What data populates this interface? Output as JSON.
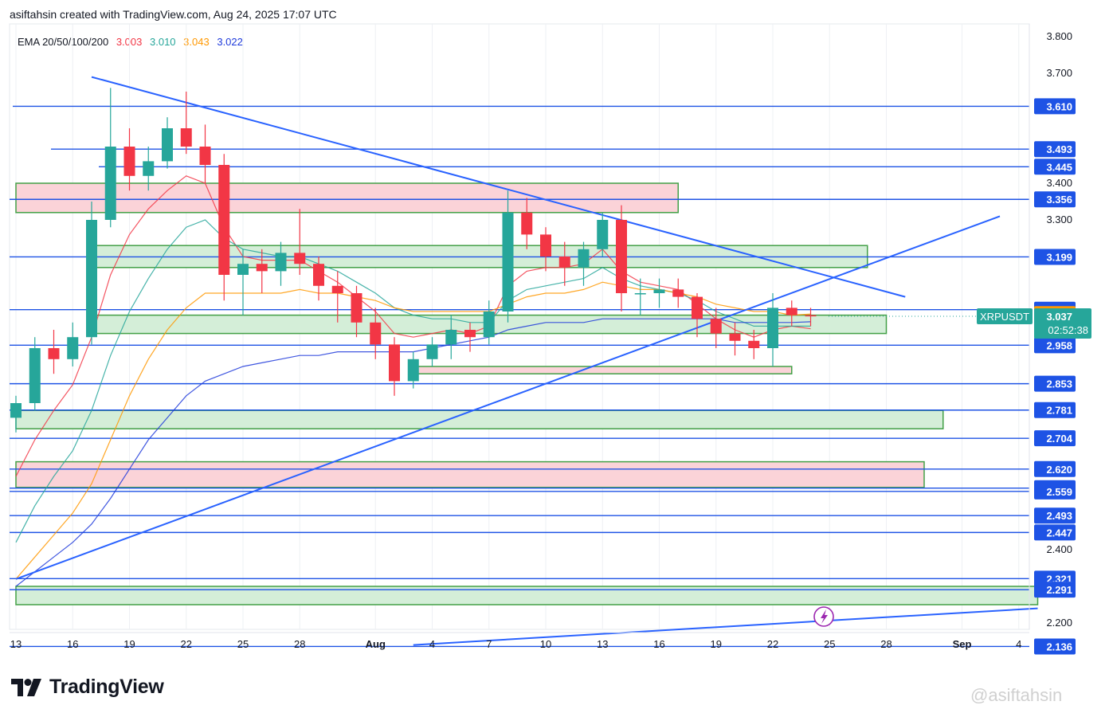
{
  "header": {
    "text": "asiftahsin created with TradingView.com, Aug 24, 2025 17:07 UTC"
  },
  "ema": {
    "label": "EMA 20/50/100/200",
    "values": [
      {
        "text": "3.003",
        "color": "#f23645"
      },
      {
        "text": "3.010",
        "color": "#26a69a"
      },
      {
        "text": "3.043",
        "color": "#ff9800"
      },
      {
        "text": "3.022",
        "color": "#1e3adb"
      }
    ]
  },
  "chart_data": {
    "type": "candlestick",
    "symbol": "XRPUSDT",
    "last_price": "3.037",
    "countdown": "02:52:38",
    "y_axis_labels": [
      "3.800",
      "3.700",
      "3.400",
      "3.300",
      "2.400",
      "2.200"
    ],
    "price_levels": [
      "3.610",
      "3.493",
      "3.445",
      "3.356",
      "3.199",
      "3.055",
      "2.958",
      "2.853",
      "2.781",
      "2.704",
      "2.620",
      "2.568",
      "2.559",
      "2.493",
      "2.447",
      "2.321",
      "2.291",
      "2.136"
    ],
    "ema_tags": [
      {
        "value": "3.043",
        "color": "#ff9800"
      },
      {
        "value": "3.022",
        "color": "#1e3adb"
      },
      {
        "value": "3.010",
        "color": "#26c6da"
      },
      {
        "value": "3.003",
        "color": "#f23645"
      }
    ],
    "x_axis_labels": [
      "13",
      "16",
      "19",
      "22",
      "25",
      "28",
      "Aug",
      "4",
      "7",
      "10",
      "13",
      "16",
      "19",
      "22",
      "25",
      "28",
      "Sep",
      "4"
    ],
    "x_label_dates": [
      "2025-07-13",
      "2025-07-16",
      "2025-07-19",
      "2025-07-22",
      "2025-07-25",
      "2025-07-28",
      "2025-08-01",
      "2025-08-04",
      "2025-08-07",
      "2025-08-10",
      "2025-08-13",
      "2025-08-16",
      "2025-08-19",
      "2025-08-22",
      "2025-08-25",
      "2025-08-28",
      "2025-09-01",
      "2025-09-04"
    ],
    "zones": [
      {
        "type": "resistance",
        "from": 3.32,
        "to": 3.4,
        "start": "2025-07-13",
        "end": "2025-08-17"
      },
      {
        "type": "support",
        "from": 3.17,
        "to": 3.23,
        "start": "2025-07-17",
        "end": "2025-08-27"
      },
      {
        "type": "support",
        "from": 2.99,
        "to": 3.04,
        "start": "2025-07-17",
        "end": "2025-08-28"
      },
      {
        "type": "resistance",
        "from": 2.88,
        "to": 2.9,
        "start": "2025-08-03",
        "end": "2025-08-23"
      },
      {
        "type": "support",
        "from": 2.73,
        "to": 2.78,
        "start": "2025-07-13",
        "end": "2025-08-31"
      },
      {
        "type": "resistance",
        "from": 2.57,
        "to": 2.64,
        "start": "2025-07-13",
        "end": "2025-08-30"
      },
      {
        "type": "support",
        "from": 2.25,
        "to": 2.3,
        "start": "2025-07-13",
        "end": "2025-09-05"
      }
    ],
    "trendlines": [
      {
        "from": {
          "date": "2025-07-17",
          "price": 3.69
        },
        "to": {
          "date": "2025-08-29",
          "price": 3.09
        }
      },
      {
        "from": {
          "date": "2025-07-13",
          "price": 2.32
        },
        "to": {
          "date": "2025-09-03",
          "price": 3.31
        }
      },
      {
        "from": {
          "date": "2025-08-03",
          "price": 2.14
        },
        "to": {
          "date": "2025-09-05",
          "price": 2.24
        }
      }
    ],
    "candles": [
      {
        "date": "2025-07-13",
        "o": 2.76,
        "h": 2.82,
        "l": 2.72,
        "c": 2.8
      },
      {
        "date": "2025-07-14",
        "o": 2.8,
        "h": 2.98,
        "l": 2.78,
        "c": 2.95
      },
      {
        "date": "2025-07-15",
        "o": 2.95,
        "h": 3.0,
        "l": 2.88,
        "c": 2.92
      },
      {
        "date": "2025-07-16",
        "o": 2.92,
        "h": 3.02,
        "l": 2.9,
        "c": 2.98
      },
      {
        "date": "2025-07-17",
        "o": 2.98,
        "h": 3.35,
        "l": 2.96,
        "c": 3.3
      },
      {
        "date": "2025-07-18",
        "o": 3.3,
        "h": 3.66,
        "l": 3.28,
        "c": 3.5
      },
      {
        "date": "2025-07-19",
        "o": 3.5,
        "h": 3.55,
        "l": 3.38,
        "c": 3.42
      },
      {
        "date": "2025-07-20",
        "o": 3.42,
        "h": 3.5,
        "l": 3.38,
        "c": 3.46
      },
      {
        "date": "2025-07-21",
        "o": 3.46,
        "h": 3.58,
        "l": 3.44,
        "c": 3.55
      },
      {
        "date": "2025-07-22",
        "o": 3.55,
        "h": 3.65,
        "l": 3.48,
        "c": 3.5
      },
      {
        "date": "2025-07-23",
        "o": 3.5,
        "h": 3.56,
        "l": 3.4,
        "c": 3.45
      },
      {
        "date": "2025-07-24",
        "o": 3.45,
        "h": 3.48,
        "l": 3.08,
        "c": 3.15
      },
      {
        "date": "2025-07-25",
        "o": 3.15,
        "h": 3.22,
        "l": 3.04,
        "c": 3.18
      },
      {
        "date": "2025-07-26",
        "o": 3.18,
        "h": 3.22,
        "l": 3.1,
        "c": 3.16
      },
      {
        "date": "2025-07-27",
        "o": 3.16,
        "h": 3.24,
        "l": 3.12,
        "c": 3.21
      },
      {
        "date": "2025-07-28",
        "o": 3.21,
        "h": 3.33,
        "l": 3.15,
        "c": 3.18
      },
      {
        "date": "2025-07-29",
        "o": 3.18,
        "h": 3.2,
        "l": 3.08,
        "c": 3.12
      },
      {
        "date": "2025-07-30",
        "o": 3.12,
        "h": 3.16,
        "l": 3.02,
        "c": 3.1
      },
      {
        "date": "2025-07-31",
        "o": 3.1,
        "h": 3.12,
        "l": 2.98,
        "c": 3.02
      },
      {
        "date": "2025-08-01",
        "o": 3.02,
        "h": 3.06,
        "l": 2.92,
        "c": 2.96
      },
      {
        "date": "2025-08-02",
        "o": 2.96,
        "h": 2.98,
        "l": 2.82,
        "c": 2.86
      },
      {
        "date": "2025-08-03",
        "o": 2.86,
        "h": 2.94,
        "l": 2.84,
        "c": 2.92
      },
      {
        "date": "2025-08-04",
        "o": 2.92,
        "h": 2.98,
        "l": 2.9,
        "c": 2.96
      },
      {
        "date": "2025-08-05",
        "o": 2.96,
        "h": 3.04,
        "l": 2.92,
        "c": 3.0
      },
      {
        "date": "2025-08-06",
        "o": 3.0,
        "h": 3.02,
        "l": 2.94,
        "c": 2.98
      },
      {
        "date": "2025-08-07",
        "o": 2.98,
        "h": 3.08,
        "l": 2.96,
        "c": 3.05
      },
      {
        "date": "2025-08-08",
        "o": 3.05,
        "h": 3.38,
        "l": 3.02,
        "c": 3.32
      },
      {
        "date": "2025-08-09",
        "o": 3.32,
        "h": 3.36,
        "l": 3.22,
        "c": 3.26
      },
      {
        "date": "2025-08-10",
        "o": 3.26,
        "h": 3.28,
        "l": 3.16,
        "c": 3.2
      },
      {
        "date": "2025-08-11",
        "o": 3.2,
        "h": 3.24,
        "l": 3.12,
        "c": 3.17
      },
      {
        "date": "2025-08-12",
        "o": 3.17,
        "h": 3.24,
        "l": 3.12,
        "c": 3.22
      },
      {
        "date": "2025-08-13",
        "o": 3.22,
        "h": 3.32,
        "l": 3.2,
        "c": 3.3
      },
      {
        "date": "2025-08-14",
        "o": 3.3,
        "h": 3.34,
        "l": 3.05,
        "c": 3.1
      },
      {
        "date": "2025-08-15",
        "o": 3.1,
        "h": 3.14,
        "l": 3.04,
        "c": 3.1
      },
      {
        "date": "2025-08-16",
        "o": 3.1,
        "h": 3.14,
        "l": 3.06,
        "c": 3.11
      },
      {
        "date": "2025-08-17",
        "o": 3.11,
        "h": 3.14,
        "l": 3.06,
        "c": 3.09
      },
      {
        "date": "2025-08-18",
        "o": 3.09,
        "h": 3.1,
        "l": 2.98,
        "c": 3.03
      },
      {
        "date": "2025-08-19",
        "o": 3.03,
        "h": 3.06,
        "l": 2.95,
        "c": 2.99
      },
      {
        "date": "2025-08-20",
        "o": 2.99,
        "h": 3.02,
        "l": 2.93,
        "c": 2.97
      },
      {
        "date": "2025-08-21",
        "o": 2.97,
        "h": 3.0,
        "l": 2.92,
        "c": 2.95
      },
      {
        "date": "2025-08-22",
        "o": 2.95,
        "h": 3.1,
        "l": 2.9,
        "c": 3.06
      },
      {
        "date": "2025-08-23",
        "o": 3.06,
        "h": 3.08,
        "l": 3.01,
        "c": 3.04
      },
      {
        "date": "2025-08-24",
        "o": 3.04,
        "h": 3.06,
        "l": 3.01,
        "c": 3.037
      }
    ],
    "ema_series": [
      {
        "name": "EMA 20",
        "color": "#f23645",
        "values": [
          2.6,
          2.7,
          2.78,
          2.85,
          2.98,
          3.15,
          3.26,
          3.33,
          3.38,
          3.42,
          3.4,
          3.28,
          3.2,
          3.19,
          3.19,
          3.19,
          3.16,
          3.13,
          3.09,
          3.05,
          2.99,
          2.98,
          2.99,
          3.0,
          2.99,
          3.01,
          3.12,
          3.16,
          3.17,
          3.17,
          3.18,
          3.22,
          3.16,
          3.13,
          3.12,
          3.11,
          3.07,
          3.03,
          3.0,
          2.98,
          3.0,
          3.01,
          3.003
        ]
      },
      {
        "name": "EMA 50",
        "color": "#26a69a",
        "values": [
          2.42,
          2.52,
          2.6,
          2.67,
          2.78,
          2.93,
          3.05,
          3.14,
          3.22,
          3.28,
          3.3,
          3.25,
          3.22,
          3.21,
          3.2,
          3.2,
          3.18,
          3.16,
          3.13,
          3.1,
          3.06,
          3.04,
          3.03,
          3.03,
          3.02,
          3.02,
          3.08,
          3.11,
          3.12,
          3.13,
          3.14,
          3.17,
          3.14,
          3.12,
          3.11,
          3.1,
          3.08,
          3.05,
          3.03,
          3.01,
          3.01,
          3.01,
          3.01
        ]
      },
      {
        "name": "EMA 100",
        "color": "#ff9800",
        "values": [
          2.32,
          2.38,
          2.44,
          2.5,
          2.58,
          2.7,
          2.82,
          2.92,
          3.0,
          3.06,
          3.1,
          3.1,
          3.1,
          3.1,
          3.1,
          3.11,
          3.1,
          3.1,
          3.09,
          3.08,
          3.06,
          3.05,
          3.05,
          3.05,
          3.05,
          3.05,
          3.07,
          3.09,
          3.1,
          3.1,
          3.11,
          3.13,
          3.12,
          3.11,
          3.11,
          3.1,
          3.09,
          3.07,
          3.06,
          3.05,
          3.05,
          3.04,
          3.043
        ]
      },
      {
        "name": "EMA 200",
        "color": "#1e3adb",
        "values": [
          2.3,
          2.34,
          2.38,
          2.42,
          2.47,
          2.54,
          2.62,
          2.7,
          2.76,
          2.82,
          2.86,
          2.88,
          2.9,
          2.91,
          2.92,
          2.93,
          2.93,
          2.94,
          2.94,
          2.94,
          2.94,
          2.94,
          2.95,
          2.96,
          2.97,
          2.98,
          3.0,
          3.01,
          3.02,
          3.02,
          3.02,
          3.03,
          3.03,
          3.03,
          3.03,
          3.03,
          3.03,
          3.03,
          3.02,
          3.02,
          3.02,
          3.02,
          3.022
        ]
      }
    ],
    "grid": true,
    "colors": {
      "up": "#26a69a",
      "down": "#f23645",
      "level": "#1e53e5",
      "support_fill": "#d4eed8",
      "support_stroke": "#43a047",
      "resistance_fill": "#fbd3d8",
      "resistance_stroke": "#43a047"
    }
  },
  "branding": {
    "logo_text": "TradingView",
    "watermark": "@asiftahsin"
  }
}
